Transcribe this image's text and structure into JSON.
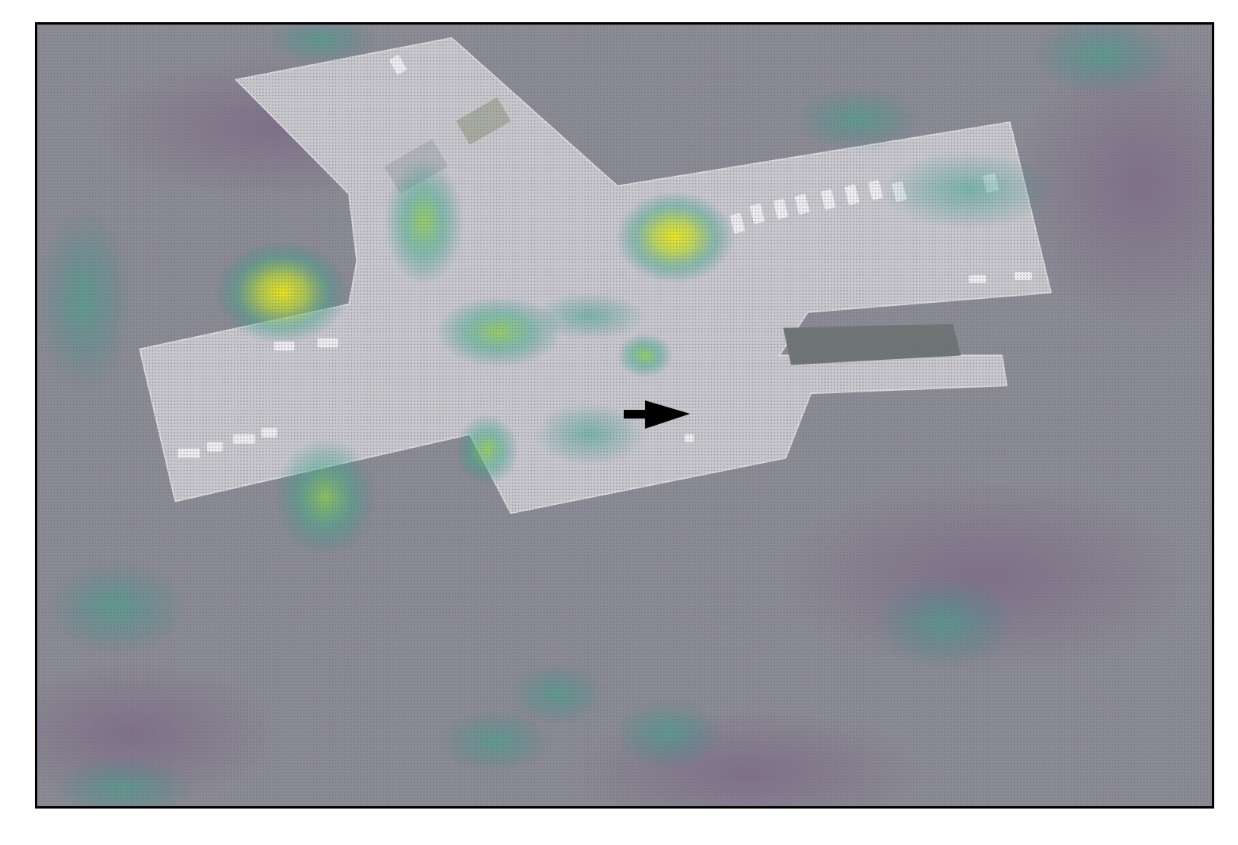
{
  "figure": {
    "type": "aerial-heatmap-overlay",
    "frame_color": "#000000",
    "background_tint": "#8d8d93",
    "colormap": [
      "#3b2f66",
      "#2a8a86",
      "#4fbf80",
      "#d7e21a"
    ],
    "marker": {
      "icon": "arrow-right-icon",
      "color": "#000000"
    }
  }
}
